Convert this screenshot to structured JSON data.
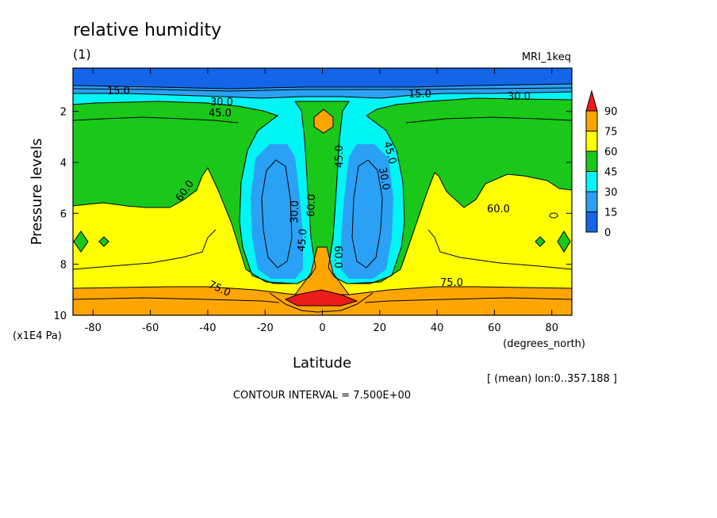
{
  "chart_data": {
    "type": "heatmap",
    "title": "relative humidity",
    "subtitle": "(1)",
    "model_label": "MRI_1keq",
    "xlabel": "Latitude",
    "x_unit": "(degrees_north)",
    "ylabel": "Pressure levels",
    "y_unit": "(x1E4 Pa)",
    "xlim": [
      -87,
      87
    ],
    "ylim": [
      10,
      0.3
    ],
    "y_inverted": true,
    "x_ticks": [
      -80,
      -60,
      -40,
      -20,
      0,
      20,
      40,
      60,
      80
    ],
    "y_ticks": [
      2,
      4,
      6,
      8,
      10
    ],
    "colorbar": {
      "levels": [
        0,
        15,
        30,
        45,
        60,
        75,
        90
      ],
      "colors": [
        "#1565e8",
        "#2ba1f5",
        "#00f5f5",
        "#19c819",
        "#ffff00",
        "#ffa500",
        "#ee1b1b"
      ],
      "extend": "max"
    },
    "contour_labels": [
      "15.0",
      "15.0",
      "30.0",
      "30.0",
      "45.0",
      "45.0",
      "45.0",
      "45.0",
      "30.0",
      "30.0",
      "60.0",
      "60.0",
      "60.0",
      "60.0",
      "75.0",
      "75.0"
    ],
    "footer_note": "[ (mean) lon:0..357.188 ]",
    "contour_interval_text": "CONTOUR INTERVAL = 7.500E+00",
    "grid": false
  }
}
